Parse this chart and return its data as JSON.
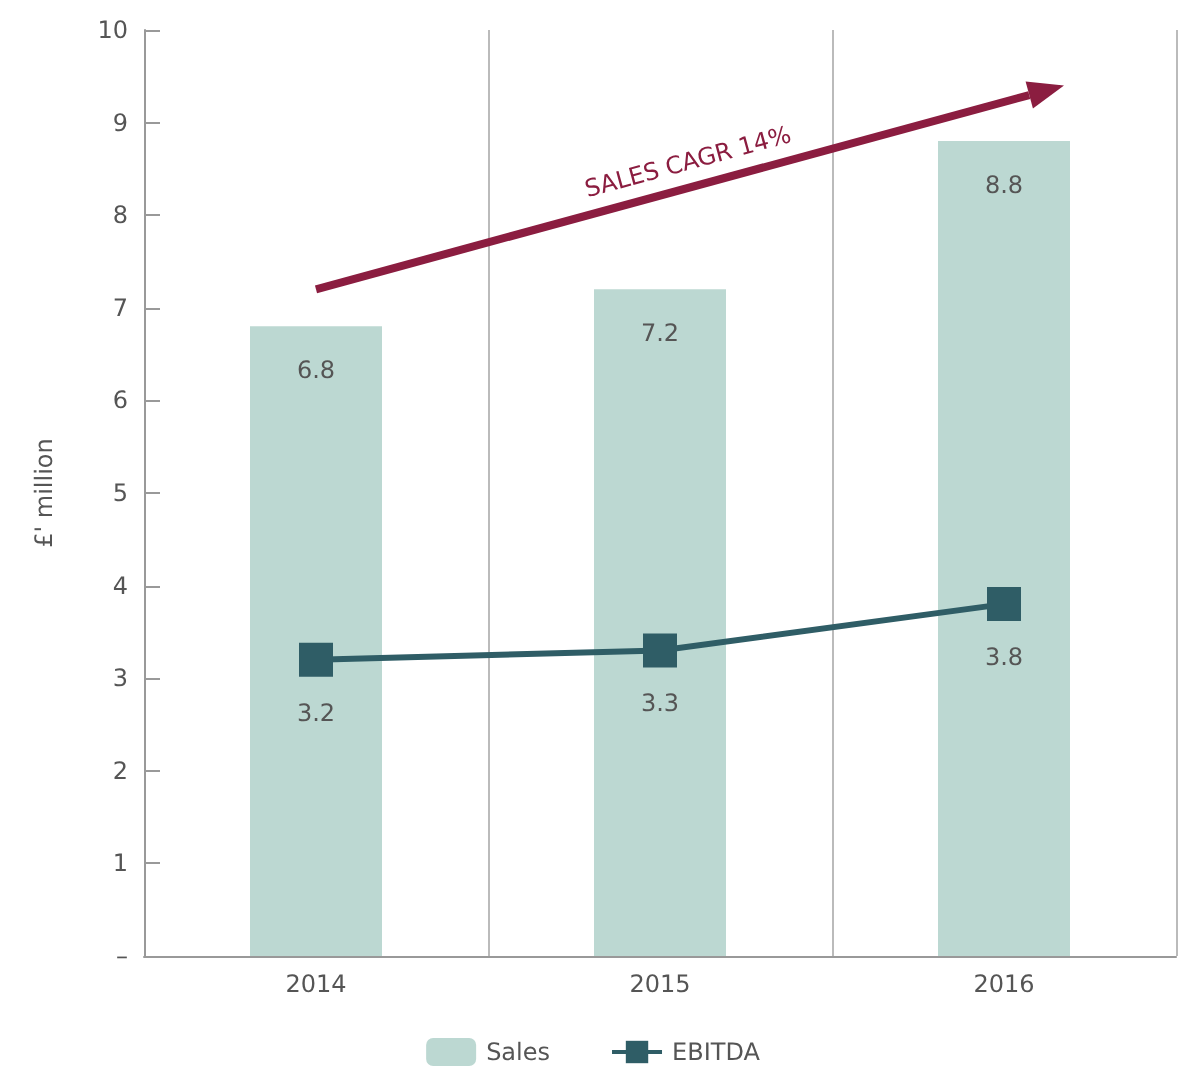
{
  "chart_data": {
    "type": "bar",
    "ylabel": "£' million",
    "categories": [
      "2014",
      "2015",
      "2016"
    ],
    "series": [
      {
        "name": "Sales",
        "color": "#bcd8d2",
        "values": [
          6.8,
          7.2,
          8.8
        ]
      },
      {
        "name": "EBITDA",
        "type": "line",
        "color": "#2f5d66",
        "values": [
          3.2,
          3.3,
          3.8
        ]
      }
    ],
    "ylim": [
      0,
      10
    ],
    "yticks": [
      {
        "value": 0,
        "label": "–"
      },
      1,
      2,
      3,
      4,
      5,
      6,
      7,
      8,
      9,
      10
    ],
    "data_labels": true,
    "grid": "x",
    "legend": "bottom",
    "marker": "square",
    "annotations": [
      "SALES CAGR 14%"
    ]
  }
}
